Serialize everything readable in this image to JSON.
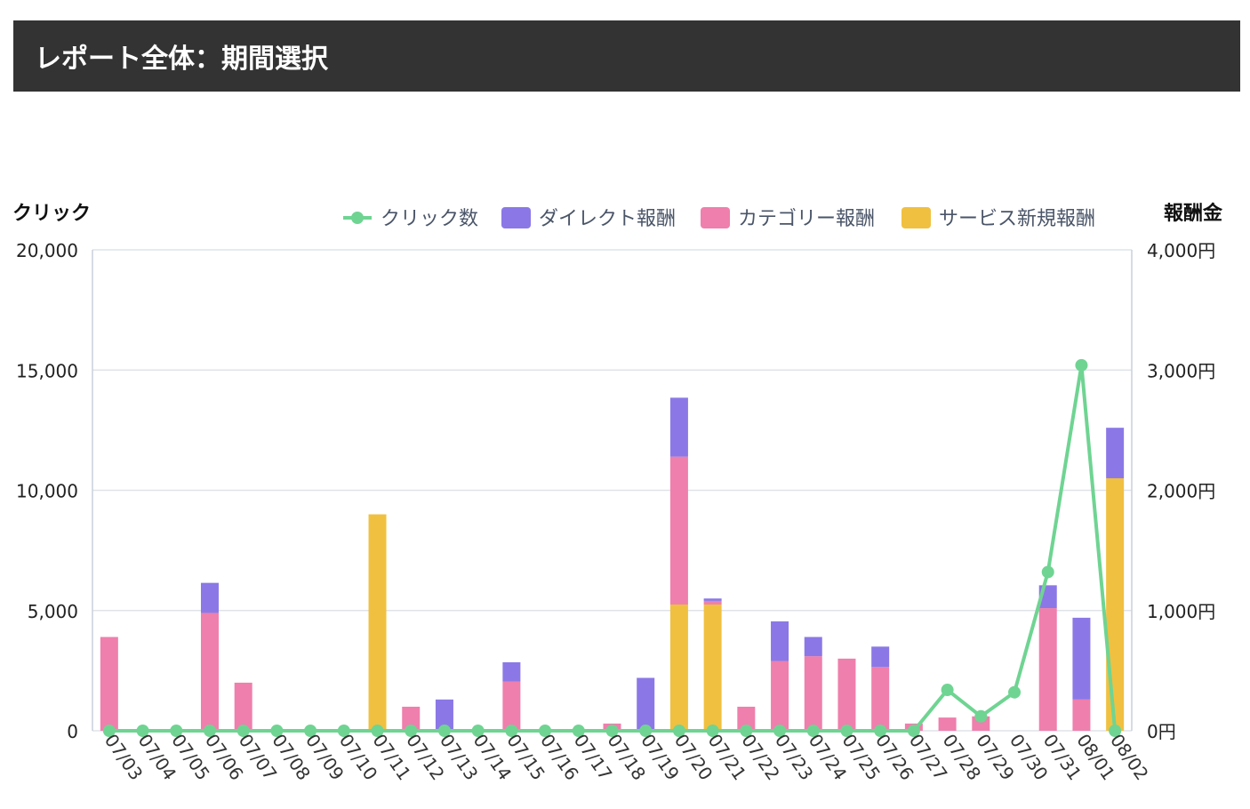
{
  "header": {
    "title": "レポート全体：期間選択"
  },
  "chart_data": {
    "type": "bar",
    "left_axis_title": "クリック",
    "right_axis_title": "報酬金",
    "legend": {
      "position": "top-right",
      "items": [
        {
          "label": "クリック数",
          "kind": "line",
          "color": "#6fd492"
        },
        {
          "label": "ダイレクト報酬",
          "kind": "bar",
          "color": "#8b78e6"
        },
        {
          "label": "カテゴリー報酬",
          "kind": "bar",
          "color": "#ef7fac"
        },
        {
          "label": "サービス新規報酬",
          "kind": "bar",
          "color": "#f0c040"
        }
      ]
    },
    "categories": [
      "07/03",
      "07/04",
      "07/05",
      "07/06",
      "07/07",
      "07/08",
      "07/09",
      "07/10",
      "07/11",
      "07/12",
      "07/13",
      "07/14",
      "07/15",
      "07/16",
      "07/17",
      "07/18",
      "07/19",
      "07/20",
      "07/21",
      "07/22",
      "07/23",
      "07/24",
      "07/25",
      "07/26",
      "07/27",
      "07/28",
      "07/29",
      "07/30",
      "07/31",
      "08/01",
      "08/02"
    ],
    "left_axis": {
      "min": 0,
      "max": 20000,
      "ticks": [
        "0",
        "5,000",
        "10,000",
        "15,000",
        "20,000"
      ]
    },
    "right_axis": {
      "min": 0,
      "max": 4000,
      "ticks": [
        "0円",
        "1,000円",
        "2,000円",
        "3,000円",
        "4,000円"
      ]
    },
    "grid": true,
    "series": [
      {
        "name": "サービス新規報酬",
        "axis": "right",
        "color": "#f0c040",
        "values": [
          0,
          0,
          0,
          0,
          0,
          0,
          0,
          0,
          1800,
          0,
          0,
          0,
          0,
          0,
          0,
          0,
          0,
          1050,
          1050,
          0,
          0,
          0,
          0,
          0,
          0,
          0,
          0,
          0,
          0,
          0,
          2100
        ]
      },
      {
        "name": "カテゴリー報酬",
        "axis": "right",
        "color": "#ef7fac",
        "values": [
          780,
          0,
          0,
          980,
          400,
          0,
          0,
          0,
          0,
          200,
          0,
          0,
          410,
          0,
          0,
          60,
          0,
          1230,
          30,
          200,
          580,
          620,
          600,
          530,
          60,
          110,
          120,
          0,
          1020,
          260,
          0
        ]
      },
      {
        "name": "ダイレクト報酬",
        "axis": "right",
        "color": "#8b78e6",
        "values": [
          0,
          0,
          0,
          250,
          0,
          0,
          0,
          0,
          0,
          0,
          260,
          0,
          160,
          0,
          0,
          0,
          440,
          490,
          20,
          0,
          330,
          160,
          0,
          170,
          0,
          0,
          0,
          0,
          190,
          680,
          420
        ]
      },
      {
        "name": "クリック数",
        "axis": "left",
        "type": "line",
        "color": "#6fd492",
        "values": [
          0,
          0,
          0,
          0,
          0,
          0,
          0,
          0,
          0,
          0,
          0,
          0,
          0,
          0,
          0,
          0,
          0,
          0,
          0,
          0,
          0,
          0,
          0,
          0,
          0,
          1700,
          600,
          1600,
          6600,
          15200,
          0
        ]
      }
    ]
  }
}
